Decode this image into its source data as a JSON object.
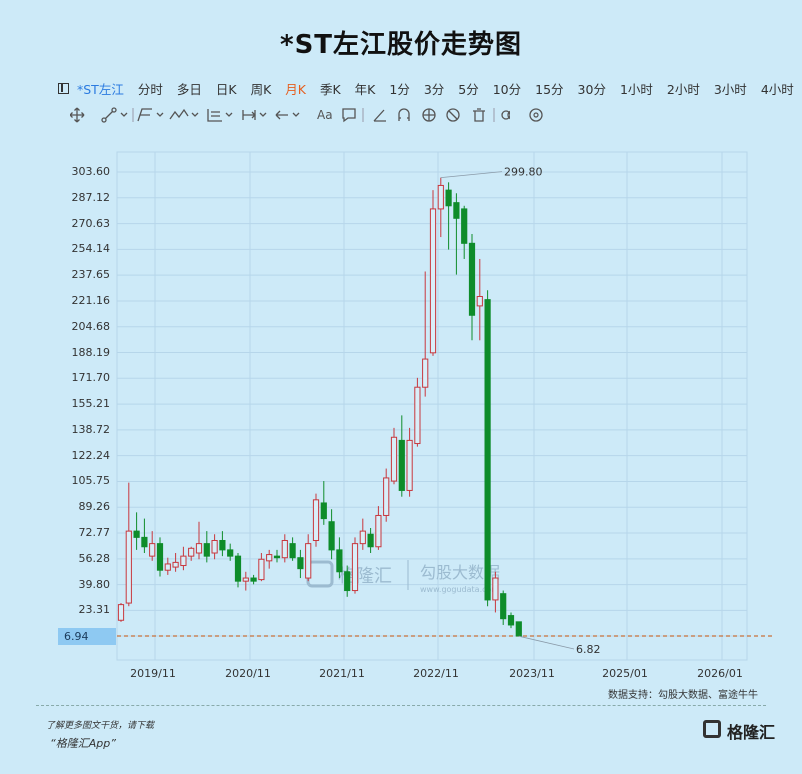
{
  "title": "*ST左江股价走势图",
  "periods": {
    "stock": "*ST左江",
    "items": [
      "分时",
      "多日",
      "日K",
      "周K",
      "月K",
      "季K",
      "年K",
      "1分",
      "3分",
      "5分",
      "10分",
      "15分",
      "30分",
      "1小时",
      "2小时",
      "3小时",
      "4小时"
    ],
    "active": "月K"
  },
  "toolbar_icons": [
    "move-icon",
    "line-tool-icon",
    "channel-tool-icon",
    "wave-tool-icon",
    "fib-tool-icon",
    "range-tool-icon",
    "arrow-tool-icon",
    "text-tool-icon",
    "note-tool-icon",
    "angle-tool-icon",
    "magnet-icon",
    "eye-icon",
    "hide-icon",
    "trash-icon",
    "link-icon",
    "settings-icon"
  ],
  "toolbar_text": "Aa",
  "current_price_label": "6.94",
  "source": "数据支持：勾股大数据、富途牛牛",
  "watermark": {
    "brand": "格隆汇",
    "brand2": "勾股大数据",
    "url": "www.gogudata.com"
  },
  "promo": {
    "line1": "了解更多图文干货，请下载",
    "line2": "“格隆汇App”"
  },
  "logo_text": "格隆汇",
  "colors": {
    "up": "#c8373d",
    "down": "#0e8c2a",
    "background": "#cdeaf8",
    "current_line": "#c9703a"
  },
  "chart_data": {
    "type": "candlestick",
    "y_ticks": [
      "303.60",
      "287.12",
      "270.63",
      "254.14",
      "237.65",
      "221.16",
      "204.68",
      "188.19",
      "171.70",
      "155.21",
      "138.72",
      "122.24",
      "105.75",
      "89.26",
      "72.77",
      "56.28",
      "39.80",
      "23.31",
      "6.94"
    ],
    "x_ticks": [
      "2019/11",
      "2020/11",
      "2021/11",
      "2022/11",
      "2023/11",
      "2025/01",
      "2026/01"
    ],
    "ylim": [
      0,
      320
    ],
    "annotations": [
      {
        "label": "299.80",
        "type": "max"
      },
      {
        "label": "6.82",
        "type": "min"
      }
    ],
    "current_price": 6.94,
    "grid": true,
    "candles": [
      {
        "d": "2019-10",
        "o": 17,
        "h": 28,
        "l": 16,
        "c": 27
      },
      {
        "d": "2019-11",
        "o": 28,
        "h": 105,
        "l": 26,
        "c": 74
      },
      {
        "d": "2019-12",
        "o": 74,
        "h": 86,
        "l": 62,
        "c": 70
      },
      {
        "d": "2020-01",
        "o": 70,
        "h": 82,
        "l": 60,
        "c": 64
      },
      {
        "d": "2020-02",
        "o": 58,
        "h": 74,
        "l": 55,
        "c": 66
      },
      {
        "d": "2020-03",
        "o": 66,
        "h": 70,
        "l": 45,
        "c": 49
      },
      {
        "d": "2020-04",
        "o": 49,
        "h": 57,
        "l": 46,
        "c": 53
      },
      {
        "d": "2020-05",
        "o": 51,
        "h": 60,
        "l": 48,
        "c": 54
      },
      {
        "d": "2020-06",
        "o": 52,
        "h": 64,
        "l": 49,
        "c": 58
      },
      {
        "d": "2020-07",
        "o": 58,
        "h": 64,
        "l": 55,
        "c": 63
      },
      {
        "d": "2020-08",
        "o": 60,
        "h": 80,
        "l": 56,
        "c": 66
      },
      {
        "d": "2020-09",
        "o": 66,
        "h": 74,
        "l": 54,
        "c": 58
      },
      {
        "d": "2020-10",
        "o": 60,
        "h": 72,
        "l": 56,
        "c": 68
      },
      {
        "d": "2020-11",
        "o": 68,
        "h": 74,
        "l": 58,
        "c": 62
      },
      {
        "d": "2020-12",
        "o": 62,
        "h": 66,
        "l": 55,
        "c": 58
      },
      {
        "d": "2021-01",
        "o": 58,
        "h": 60,
        "l": 38,
        "c": 42
      },
      {
        "d": "2021-02",
        "o": 42,
        "h": 48,
        "l": 36,
        "c": 44
      },
      {
        "d": "2021-03",
        "o": 44,
        "h": 46,
        "l": 40,
        "c": 42
      },
      {
        "d": "2021-04",
        "o": 43,
        "h": 60,
        "l": 42,
        "c": 56
      },
      {
        "d": "2021-05",
        "o": 55,
        "h": 62,
        "l": 50,
        "c": 59
      },
      {
        "d": "2021-06",
        "o": 58,
        "h": 62,
        "l": 54,
        "c": 57
      },
      {
        "d": "2021-07",
        "o": 57,
        "h": 72,
        "l": 54,
        "c": 68
      },
      {
        "d": "2021-08",
        "o": 66,
        "h": 70,
        "l": 55,
        "c": 57
      },
      {
        "d": "2021-09",
        "o": 57,
        "h": 62,
        "l": 44,
        "c": 50
      },
      {
        "d": "2021-10",
        "o": 44,
        "h": 72,
        "l": 42,
        "c": 66
      },
      {
        "d": "2021-11",
        "o": 68,
        "h": 98,
        "l": 64,
        "c": 94
      },
      {
        "d": "2021-12",
        "o": 92,
        "h": 106,
        "l": 78,
        "c": 82
      },
      {
        "d": "2022-01",
        "o": 80,
        "h": 88,
        "l": 56,
        "c": 62
      },
      {
        "d": "2022-02",
        "o": 62,
        "h": 70,
        "l": 44,
        "c": 48
      },
      {
        "d": "2022-03",
        "o": 48,
        "h": 52,
        "l": 32,
        "c": 36
      },
      {
        "d": "2022-04",
        "o": 36,
        "h": 70,
        "l": 34,
        "c": 66
      },
      {
        "d": "2022-05",
        "o": 66,
        "h": 82,
        "l": 62,
        "c": 74
      },
      {
        "d": "2022-06",
        "o": 72,
        "h": 76,
        "l": 60,
        "c": 64
      },
      {
        "d": "2022-07",
        "o": 64,
        "h": 90,
        "l": 62,
        "c": 84
      },
      {
        "d": "2022-08",
        "o": 84,
        "h": 114,
        "l": 80,
        "c": 108
      },
      {
        "d": "2022-09",
        "o": 106,
        "h": 140,
        "l": 104,
        "c": 134
      },
      {
        "d": "2022-10",
        "o": 132,
        "h": 148,
        "l": 96,
        "c": 100
      },
      {
        "d": "2022-11",
        "o": 100,
        "h": 140,
        "l": 96,
        "c": 132
      },
      {
        "d": "2022-12",
        "o": 130,
        "h": 172,
        "l": 128,
        "c": 166
      },
      {
        "d": "2023-01",
        "o": 166,
        "h": 240,
        "l": 160,
        "c": 184
      },
      {
        "d": "2023-02",
        "o": 188,
        "h": 292,
        "l": 186,
        "c": 280
      },
      {
        "d": "2023-03",
        "o": 280,
        "h": 300,
        "l": 262,
        "c": 295
      },
      {
        "d": "2023-04",
        "o": 292,
        "h": 297,
        "l": 254,
        "c": 282
      },
      {
        "d": "2023-05",
        "o": 284,
        "h": 290,
        "l": 238,
        "c": 274
      },
      {
        "d": "2023-06",
        "o": 280,
        "h": 282,
        "l": 248,
        "c": 258
      },
      {
        "d": "2023-07",
        "o": 258,
        "h": 264,
        "l": 196,
        "c": 212
      },
      {
        "d": "2023-08",
        "o": 218,
        "h": 248,
        "l": 196,
        "c": 224
      },
      {
        "d": "2023-09",
        "o": 222,
        "h": 228,
        "l": 26,
        "c": 30
      },
      {
        "d": "2023-10",
        "o": 30,
        "h": 48,
        "l": 22,
        "c": 44
      },
      {
        "d": "2023-11",
        "o": 34,
        "h": 36,
        "l": 14,
        "c": 18
      },
      {
        "d": "2023-12",
        "o": 20,
        "h": 22,
        "l": 12,
        "c": 14
      },
      {
        "d": "2024-01",
        "o": 16,
        "h": 16,
        "l": 6.82,
        "c": 6.94
      }
    ]
  }
}
